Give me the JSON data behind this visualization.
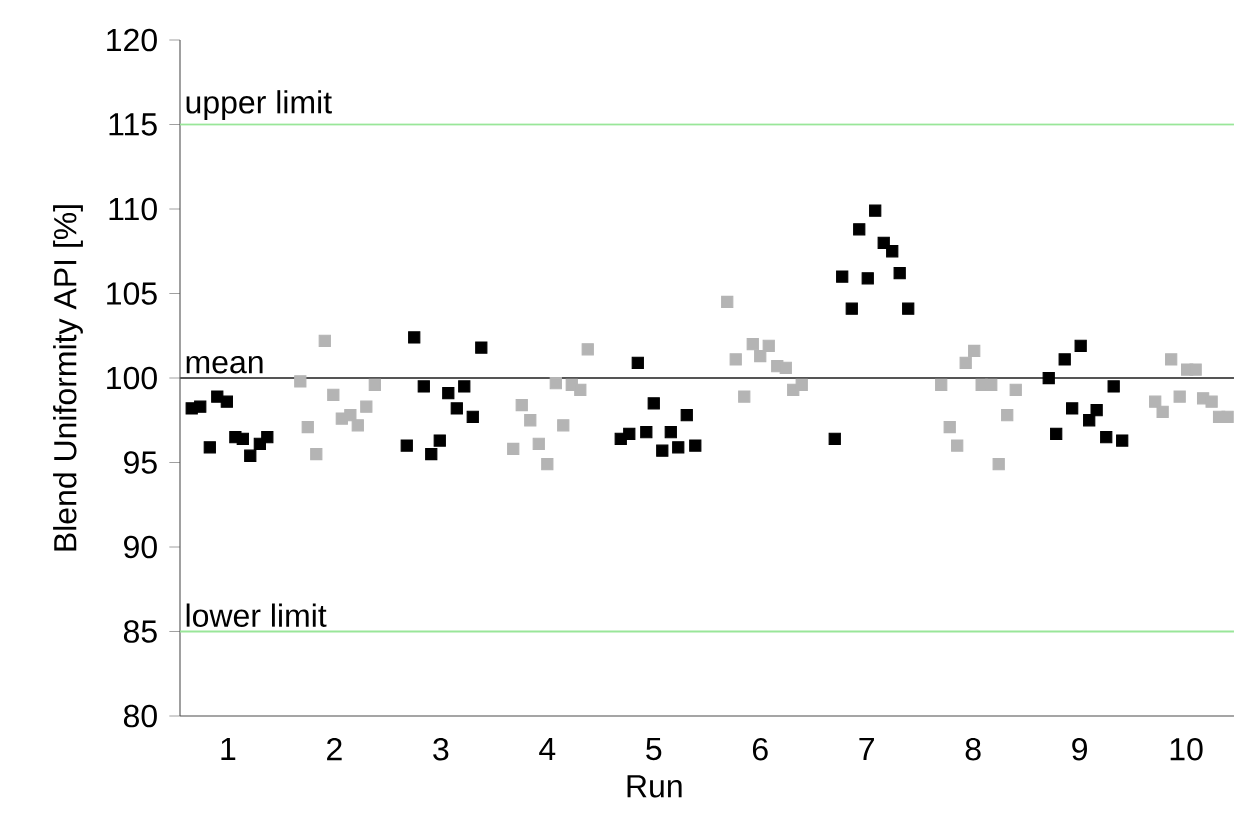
{
  "chart_data": {
    "type": "scatter",
    "xlabel": "Run",
    "ylabel": "Blend Uniformity API [%]",
    "xlim": [
      0.55,
      10.45
    ],
    "xticks": [
      1,
      2,
      3,
      4,
      5,
      6,
      7,
      8,
      9,
      10
    ],
    "ylim": [
      80,
      120
    ],
    "yticks": [
      80,
      85,
      90,
      95,
      100,
      105,
      110,
      115,
      120
    ],
    "grid": false,
    "marker": "square",
    "series": [
      {
        "color": "#000000",
        "x": [
          0.66,
          0.74,
          0.9,
          0.99,
          0.83,
          1.07,
          1.14,
          1.21,
          1.3,
          1.37,
          2.75,
          2.84,
          2.68,
          2.91,
          2.99,
          3.07,
          3.15,
          3.22,
          3.3,
          3.38,
          4.69,
          4.77,
          4.85,
          4.93,
          5.0,
          5.08,
          5.16,
          5.23,
          5.31,
          5.39,
          6.7,
          6.77,
          6.86,
          6.93,
          7.01,
          7.08,
          7.16,
          7.24,
          7.31,
          7.39,
          8.71,
          8.78,
          8.86,
          8.93,
          9.01,
          9.09,
          9.16,
          9.25,
          9.32,
          9.4
        ],
        "values": [
          98.2,
          98.3,
          98.9,
          98.6,
          95.9,
          96.5,
          96.4,
          95.4,
          96.1,
          96.5,
          102.4,
          99.5,
          96.0,
          95.5,
          96.3,
          99.1,
          98.2,
          99.5,
          97.7,
          101.8,
          96.4,
          96.7,
          100.9,
          96.8,
          98.5,
          95.7,
          96.8,
          95.9,
          97.8,
          96.0,
          96.4,
          106.0,
          104.1,
          108.8,
          105.9,
          109.9,
          108.0,
          107.5,
          106.2,
          104.1,
          100.0,
          96.7,
          101.1,
          98.2,
          101.9,
          97.5,
          98.1,
          96.5,
          99.5,
          96.3
        ]
      },
      {
        "color": "#b4b4b4",
        "x": [
          1.68,
          1.91,
          1.75,
          1.83,
          1.99,
          2.07,
          2.15,
          2.22,
          2.3,
          2.38,
          3.68,
          3.76,
          3.84,
          3.92,
          4.0,
          4.08,
          4.15,
          4.23,
          4.31,
          4.38,
          5.69,
          5.77,
          5.85,
          5.93,
          6.0,
          6.08,
          6.16,
          6.24,
          6.31,
          6.39,
          7.7,
          7.78,
          7.85,
          7.93,
          8.01,
          8.08,
          8.17,
          8.24,
          8.32,
          8.4,
          9.71,
          9.78,
          9.86,
          9.94,
          10.01,
          10.09,
          10.16,
          10.24,
          10.31,
          10.39
        ],
        "values": [
          99.8,
          102.2,
          97.1,
          95.5,
          99.0,
          97.6,
          97.8,
          97.2,
          98.3,
          99.6,
          95.8,
          98.4,
          97.5,
          96.1,
          94.9,
          99.7,
          97.2,
          99.6,
          99.3,
          101.7,
          104.5,
          101.1,
          98.9,
          102.0,
          101.3,
          101.9,
          100.7,
          100.6,
          99.3,
          99.6,
          99.6,
          97.1,
          96.0,
          100.9,
          101.6,
          99.6,
          99.6,
          94.9,
          97.8,
          99.3,
          98.6,
          98.0,
          101.1,
          98.9,
          100.5,
          100.5,
          98.8,
          98.6,
          97.7,
          97.7
        ]
      }
    ],
    "ref_lines": [
      {
        "axis": "y",
        "value": 115,
        "label": "upper limit",
        "color": "#99e699"
      },
      {
        "axis": "y",
        "value": 100,
        "label": "mean",
        "color": "#555555"
      },
      {
        "axis": "y",
        "value": 85,
        "label": "lower limit",
        "color": "#99e699"
      }
    ]
  }
}
